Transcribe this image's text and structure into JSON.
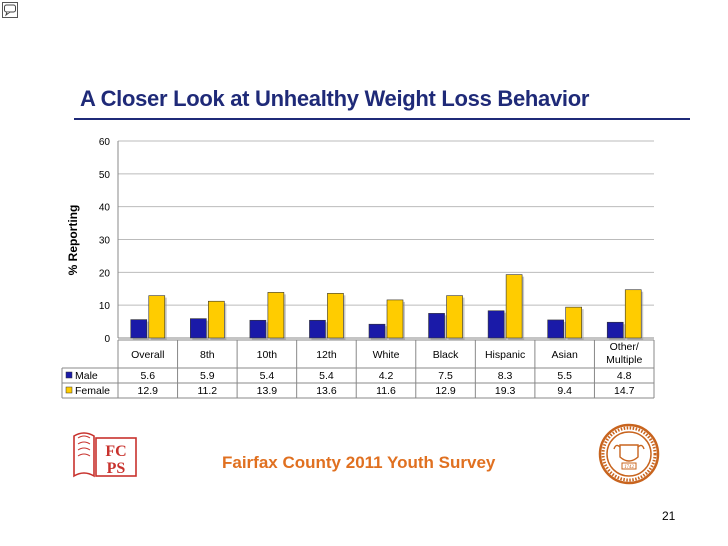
{
  "slide": {
    "title": "A Closer Look at Unhealthy Weight Loss Behavior",
    "footer": "Fairfax County 2011 Youth Survey",
    "page_number": "21",
    "logo_text_top": "FC",
    "logo_text_bottom": "PS",
    "seal_year": "1742"
  },
  "colors": {
    "title": "#1f2a78",
    "male": "#1a1aa8",
    "female": "#ffcc00",
    "footer": "#e07020",
    "logo_red": "#c8322d",
    "seal": "#c8641e"
  },
  "chart_data": {
    "type": "bar",
    "title": "",
    "xlabel": "",
    "ylabel": "% Reporting",
    "ylim": [
      0,
      60
    ],
    "yticks": [
      0,
      10,
      20,
      30,
      40,
      50,
      60
    ],
    "grid": true,
    "legend": "table-left",
    "categories": [
      "Overall",
      "8th",
      "10th",
      "12th",
      "White",
      "Black",
      "Hispanic",
      "Asian",
      "Other/ Multiple"
    ],
    "series": [
      {
        "name": "Male",
        "values": [
          5.6,
          5.9,
          5.4,
          5.4,
          4.2,
          7.5,
          8.3,
          5.5,
          4.8
        ]
      },
      {
        "name": "Female",
        "values": [
          12.9,
          11.2,
          13.9,
          13.6,
          11.6,
          12.9,
          19.3,
          9.4,
          14.7
        ]
      }
    ]
  }
}
